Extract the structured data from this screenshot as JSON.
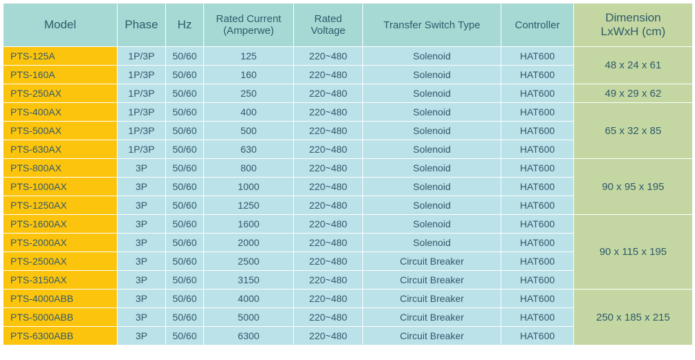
{
  "colors": {
    "header_model": "#a7d9d4",
    "header_phase": "#a7d9d4",
    "header_hz": "#a7d9d4",
    "header_current": "#a7d9d4",
    "header_voltage": "#a7d9d4",
    "header_switch": "#a7d9d4",
    "header_ctrl": "#a7d9d4",
    "header_dim": "#c4d7a2",
    "cell_model": "#fdc40e",
    "cell_data": "#bbe1e9",
    "cell_dim": "#c4d7a2",
    "text": "#2e5a6a",
    "border": "#ffffff"
  },
  "fonts": {
    "header_large": 17,
    "header_small": 15,
    "cell": 14
  },
  "columns": [
    {
      "key": "model",
      "label": "Model"
    },
    {
      "key": "phase",
      "label": "Phase"
    },
    {
      "key": "hz",
      "label": "Hz"
    },
    {
      "key": "current",
      "label": "Rated Current\n(Amperwe)"
    },
    {
      "key": "voltage",
      "label": "Rated\nVoltage"
    },
    {
      "key": "switch",
      "label": "Transfer Switch Type"
    },
    {
      "key": "ctrl",
      "label": "Controller"
    },
    {
      "key": "dim",
      "label": "Dimension\nLxWxH (cm)"
    }
  ],
  "rows": [
    {
      "model": "PTS-125A",
      "phase": "1P/3P",
      "hz": "50/60",
      "current": "125",
      "voltage": "220~480",
      "switch": "Solenoid",
      "ctrl": "HAT600"
    },
    {
      "model": "PTS-160A",
      "phase": "1P/3P",
      "hz": "50/60",
      "current": "160",
      "voltage": "220~480",
      "switch": "Solenoid",
      "ctrl": "HAT600"
    },
    {
      "model": "PTS-250AX",
      "phase": "1P/3P",
      "hz": "50/60",
      "current": "250",
      "voltage": "220~480",
      "switch": "Solenoid",
      "ctrl": "HAT600"
    },
    {
      "model": "PTS-400AX",
      "phase": "1P/3P",
      "hz": "50/60",
      "current": "400",
      "voltage": "220~480",
      "switch": "Solenoid",
      "ctrl": "HAT600"
    },
    {
      "model": "PTS-500AX",
      "phase": "1P/3P",
      "hz": "50/60",
      "current": "500",
      "voltage": "220~480",
      "switch": "Solenoid",
      "ctrl": "HAT600"
    },
    {
      "model": "PTS-630AX",
      "phase": "1P/3P",
      "hz": "50/60",
      "current": "630",
      "voltage": "220~480",
      "switch": "Solenoid",
      "ctrl": "HAT600"
    },
    {
      "model": "PTS-800AX",
      "phase": "3P",
      "hz": "50/60",
      "current": "800",
      "voltage": "220~480",
      "switch": "Solenoid",
      "ctrl": "HAT600"
    },
    {
      "model": "PTS-1000AX",
      "phase": "3P",
      "hz": "50/60",
      "current": "1000",
      "voltage": "220~480",
      "switch": "Solenoid",
      "ctrl": "HAT600"
    },
    {
      "model": "PTS-1250AX",
      "phase": "3P",
      "hz": "50/60",
      "current": "1250",
      "voltage": "220~480",
      "switch": "Solenoid",
      "ctrl": "HAT600"
    },
    {
      "model": "PTS-1600AX",
      "phase": "3P",
      "hz": "50/60",
      "current": "1600",
      "voltage": "220~480",
      "switch": "Solenoid",
      "ctrl": "HAT600"
    },
    {
      "model": "PTS-2000AX",
      "phase": "3P",
      "hz": "50/60",
      "current": "2000",
      "voltage": "220~480",
      "switch": "Solenoid",
      "ctrl": "HAT600"
    },
    {
      "model": "PTS-2500AX",
      "phase": "3P",
      "hz": "50/60",
      "current": "2500",
      "voltage": "220~480",
      "switch": "Circuit Breaker",
      "ctrl": "HAT600"
    },
    {
      "model": "PTS-3150AX",
      "phase": "3P",
      "hz": "50/60",
      "current": "3150",
      "voltage": "220~480",
      "switch": "Circuit Breaker",
      "ctrl": "HAT600"
    },
    {
      "model": "PTS-4000ABB",
      "phase": "3P",
      "hz": "50/60",
      "current": "4000",
      "voltage": "220~480",
      "switch": "Circuit Breaker",
      "ctrl": "HAT600"
    },
    {
      "model": "PTS-5000ABB",
      "phase": "3P",
      "hz": "50/60",
      "current": "5000",
      "voltage": "220~480",
      "switch": "Circuit Breaker",
      "ctrl": "HAT600"
    },
    {
      "model": "PTS-6300ABB",
      "phase": "3P",
      "hz": "50/60",
      "current": "6300",
      "voltage": "220~480",
      "switch": "Circuit Breaker",
      "ctrl": "HAT600"
    }
  ],
  "dimension_groups": [
    {
      "start": 0,
      "span": 2,
      "value": "48 x 24 x 61"
    },
    {
      "start": 2,
      "span": 1,
      "value": "49 x 29 x 62"
    },
    {
      "start": 3,
      "span": 3,
      "value": "65 x 32 x 85"
    },
    {
      "start": 6,
      "span": 3,
      "value": "90 x 95 x 195"
    },
    {
      "start": 9,
      "span": 4,
      "value": "90 x 115 x 195"
    },
    {
      "start": 13,
      "span": 3,
      "value": "250 x 185 x 215"
    }
  ]
}
